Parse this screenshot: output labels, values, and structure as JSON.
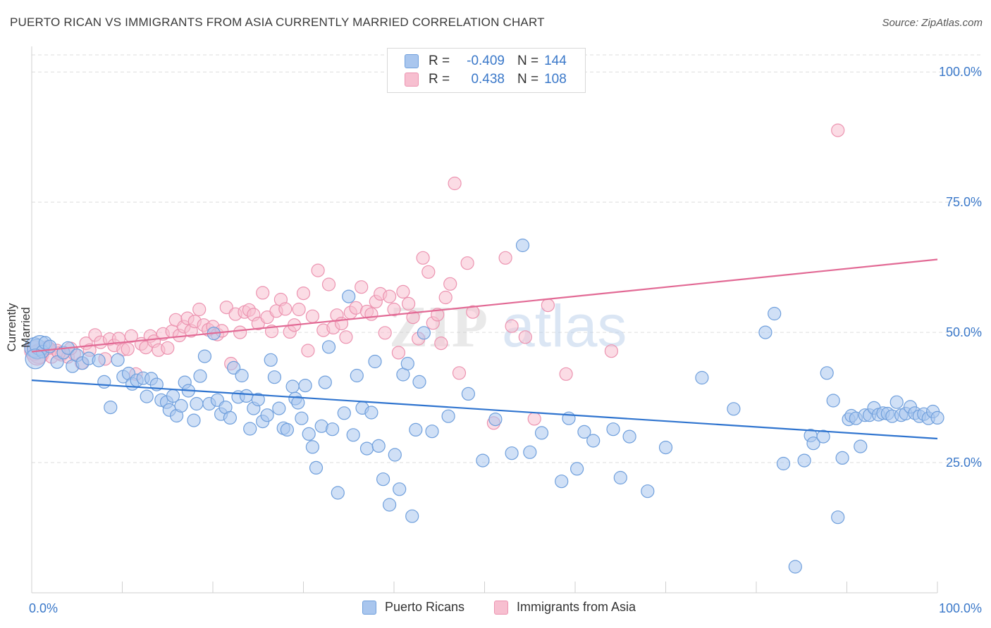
{
  "title": "PUERTO RICAN VS IMMIGRANTS FROM ASIA CURRENTLY MARRIED CORRELATION CHART",
  "source": "Source: ZipAtlas.com",
  "watermark": {
    "zip": "ZIP",
    "atlas": "atlas"
  },
  "legend": {
    "r_label": "R =",
    "n_label": "N =",
    "rows": [
      {
        "r": "-0.409",
        "n": "144"
      },
      {
        "r": "0.438",
        "n": "108"
      }
    ]
  },
  "colors": {
    "blue_fill": "#a9c6ee",
    "blue_stroke": "#6f9fdc",
    "blue_line": "#2f74cf",
    "pink_fill": "#f7bfd0",
    "pink_stroke": "#ec93b0",
    "pink_line": "#e26a95",
    "tick_text": "#3a78c9",
    "grid": "#dedede"
  },
  "chart_data": {
    "type": "scatter",
    "title": "PUERTO RICAN VS IMMIGRANTS FROM ASIA CURRENTLY MARRIED CORRELATION CHART",
    "xlabel": "",
    "ylabel": "Currently Married",
    "xlim": [
      0,
      100
    ],
    "ylim": [
      0,
      103
    ],
    "x_tick_labels": [
      "0.0%",
      "100.0%"
    ],
    "y_ticks": [
      25,
      50,
      75,
      100
    ],
    "y_tick_labels": [
      "25.0%",
      "50.0%",
      "75.0%",
      "100.0%"
    ],
    "grid": true,
    "legend_position": "top-center",
    "series": [
      {
        "name": "Puerto Ricans",
        "r": -0.409,
        "n": 144,
        "trend": {
          "x": [
            0,
            100
          ],
          "y": [
            40.8,
            29.6
          ]
        },
        "points": [
          [
            0.3,
            47.1
          ],
          [
            0.6,
            46.8
          ],
          [
            0.9,
            47.5
          ],
          [
            1.2,
            46.3
          ],
          [
            1.5,
            48.0
          ],
          [
            2.0,
            47.3
          ],
          [
            2.8,
            44.3
          ],
          [
            3.5,
            46.1
          ],
          [
            4.0,
            47.0
          ],
          [
            4.5,
            43.5
          ],
          [
            5.0,
            45.6
          ],
          [
            5.6,
            44.1
          ],
          [
            6.3,
            45.0
          ],
          [
            7.4,
            44.6
          ],
          [
            8.0,
            40.5
          ],
          [
            8.7,
            35.6
          ],
          [
            9.5,
            44.7
          ],
          [
            10.1,
            41.5
          ],
          [
            10.7,
            42.1
          ],
          [
            11.1,
            40.1
          ],
          [
            11.6,
            40.8
          ],
          [
            12.3,
            41.2
          ],
          [
            12.7,
            37.7
          ],
          [
            13.2,
            41.1
          ],
          [
            13.8,
            40.0
          ],
          [
            14.3,
            37.0
          ],
          [
            14.9,
            36.6
          ],
          [
            15.2,
            35.1
          ],
          [
            15.6,
            37.8
          ],
          [
            16.0,
            34.0
          ],
          [
            16.5,
            35.9
          ],
          [
            16.9,
            40.4
          ],
          [
            17.3,
            38.8
          ],
          [
            17.9,
            33.1
          ],
          [
            18.2,
            36.3
          ],
          [
            18.6,
            41.6
          ],
          [
            19.1,
            45.4
          ],
          [
            19.6,
            36.3
          ],
          [
            20.1,
            49.8
          ],
          [
            20.5,
            37.0
          ],
          [
            20.9,
            34.3
          ],
          [
            21.4,
            35.6
          ],
          [
            21.9,
            33.6
          ],
          [
            22.3,
            43.2
          ],
          [
            22.8,
            37.6
          ],
          [
            23.2,
            41.7
          ],
          [
            23.7,
            37.8
          ],
          [
            24.1,
            31.5
          ],
          [
            24.5,
            35.4
          ],
          [
            25.0,
            37.1
          ],
          [
            25.5,
            32.9
          ],
          [
            26.0,
            34.1
          ],
          [
            26.4,
            44.7
          ],
          [
            26.8,
            41.4
          ],
          [
            27.3,
            35.4
          ],
          [
            27.8,
            31.6
          ],
          [
            28.2,
            31.3
          ],
          [
            28.8,
            39.6
          ],
          [
            29.1,
            37.3
          ],
          [
            29.4,
            36.5
          ],
          [
            29.8,
            33.5
          ],
          [
            30.2,
            39.8
          ],
          [
            30.6,
            30.5
          ],
          [
            31.0,
            28.0
          ],
          [
            31.4,
            24.0
          ],
          [
            32.0,
            32.0
          ],
          [
            32.4,
            40.4
          ],
          [
            32.8,
            47.2
          ],
          [
            33.2,
            31.4
          ],
          [
            33.8,
            19.2
          ],
          [
            34.5,
            34.5
          ],
          [
            35.0,
            56.9
          ],
          [
            35.5,
            30.3
          ],
          [
            35.9,
            41.7
          ],
          [
            36.5,
            35.5
          ],
          [
            37.0,
            27.7
          ],
          [
            37.5,
            34.6
          ],
          [
            37.9,
            44.4
          ],
          [
            38.3,
            28.2
          ],
          [
            38.8,
            21.8
          ],
          [
            39.5,
            16.9
          ],
          [
            40.1,
            26.5
          ],
          [
            40.6,
            19.9
          ],
          [
            41.0,
            41.9
          ],
          [
            41.5,
            44.0
          ],
          [
            42.0,
            14.7
          ],
          [
            42.4,
            31.3
          ],
          [
            42.8,
            40.5
          ],
          [
            43.3,
            49.9
          ],
          [
            44.2,
            31.0
          ],
          [
            46.0,
            33.9
          ],
          [
            48.2,
            38.2
          ],
          [
            49.8,
            25.4
          ],
          [
            51.2,
            33.3
          ],
          [
            53.0,
            26.8
          ],
          [
            54.2,
            66.7
          ],
          [
            55.0,
            27.0
          ],
          [
            56.3,
            30.7
          ],
          [
            58.5,
            21.4
          ],
          [
            59.3,
            33.5
          ],
          [
            60.2,
            23.8
          ],
          [
            61.0,
            30.9
          ],
          [
            62.0,
            29.2
          ],
          [
            64.2,
            31.4
          ],
          [
            65.0,
            22.1
          ],
          [
            66.0,
            30.0
          ],
          [
            68.0,
            19.5
          ],
          [
            70.0,
            27.9
          ],
          [
            74.0,
            41.3
          ],
          [
            77.5,
            35.3
          ],
          [
            81.0,
            50.0
          ],
          [
            82.0,
            53.6
          ],
          [
            83.0,
            24.8
          ],
          [
            84.3,
            5.0
          ],
          [
            85.3,
            25.4
          ],
          [
            86.0,
            30.2
          ],
          [
            86.3,
            28.7
          ],
          [
            87.4,
            30.0
          ],
          [
            87.8,
            42.2
          ],
          [
            88.5,
            36.9
          ],
          [
            89.0,
            14.5
          ],
          [
            89.5,
            25.9
          ],
          [
            90.2,
            33.3
          ],
          [
            90.5,
            34.0
          ],
          [
            91.0,
            33.5
          ],
          [
            91.5,
            28.1
          ],
          [
            92.0,
            34.1
          ],
          [
            92.5,
            34.1
          ],
          [
            93.0,
            35.5
          ],
          [
            93.5,
            34.2
          ],
          [
            94.0,
            34.5
          ],
          [
            94.5,
            34.4
          ],
          [
            95.0,
            33.9
          ],
          [
            95.5,
            36.6
          ],
          [
            96.0,
            34.1
          ],
          [
            96.5,
            34.4
          ],
          [
            97.0,
            35.7
          ],
          [
            97.5,
            34.5
          ],
          [
            98.0,
            33.9
          ],
          [
            98.5,
            34.3
          ],
          [
            99.0,
            33.5
          ],
          [
            99.5,
            34.8
          ],
          [
            100.0,
            33.6
          ],
          [
            0.4,
            44.9
          ]
        ]
      },
      {
        "name": "Immigrants from Asia",
        "r": 0.438,
        "n": 108,
        "trend": {
          "x": [
            0,
            100
          ],
          "y": [
            46.3,
            64.0
          ]
        },
        "points": [
          [
            0.3,
            46.5
          ],
          [
            0.8,
            45.9
          ],
          [
            1.2,
            46.8
          ],
          [
            1.7,
            47.2
          ],
          [
            2.2,
            45.3
          ],
          [
            2.8,
            46.5
          ],
          [
            3.3,
            45.7
          ],
          [
            4.0,
            45.3
          ],
          [
            4.7,
            45.9
          ],
          [
            5.5,
            44.1
          ],
          [
            6.0,
            47.9
          ],
          [
            6.4,
            46.6
          ],
          [
            7.0,
            49.5
          ],
          [
            7.6,
            48.1
          ],
          [
            8.1,
            44.9
          ],
          [
            8.6,
            48.7
          ],
          [
            9.1,
            47.5
          ],
          [
            9.6,
            48.8
          ],
          [
            10.1,
            46.7
          ],
          [
            10.6,
            46.8
          ],
          [
            11.0,
            49.3
          ],
          [
            11.5,
            42.0
          ],
          [
            12.1,
            47.8
          ],
          [
            12.6,
            47.1
          ],
          [
            13.1,
            49.3
          ],
          [
            13.5,
            48.3
          ],
          [
            14.0,
            46.6
          ],
          [
            14.5,
            49.7
          ],
          [
            15.0,
            47.0
          ],
          [
            15.5,
            50.2
          ],
          [
            15.9,
            52.4
          ],
          [
            16.3,
            49.4
          ],
          [
            16.8,
            51.1
          ],
          [
            17.2,
            52.7
          ],
          [
            17.6,
            50.3
          ],
          [
            18.0,
            52.1
          ],
          [
            18.5,
            54.4
          ],
          [
            19.0,
            51.4
          ],
          [
            19.5,
            50.5
          ],
          [
            20.0,
            51.1
          ],
          [
            20.5,
            49.6
          ],
          [
            21.0,
            50.3
          ],
          [
            21.5,
            54.8
          ],
          [
            22.0,
            44.0
          ],
          [
            22.5,
            53.5
          ],
          [
            23.0,
            50.0
          ],
          [
            23.5,
            53.9
          ],
          [
            24.0,
            54.3
          ],
          [
            24.5,
            53.4
          ],
          [
            25.0,
            51.7
          ],
          [
            25.5,
            57.6
          ],
          [
            26.0,
            52.9
          ],
          [
            26.5,
            50.2
          ],
          [
            27.0,
            54.1
          ],
          [
            27.5,
            56.3
          ],
          [
            28.0,
            54.5
          ],
          [
            28.5,
            50.1
          ],
          [
            29.0,
            51.4
          ],
          [
            29.5,
            54.4
          ],
          [
            30.0,
            57.5
          ],
          [
            30.5,
            46.5
          ],
          [
            31.0,
            53.1
          ],
          [
            31.6,
            61.9
          ],
          [
            32.2,
            50.4
          ],
          [
            32.8,
            59.2
          ],
          [
            33.3,
            50.9
          ],
          [
            33.7,
            53.3
          ],
          [
            34.2,
            51.7
          ],
          [
            34.7,
            49.1
          ],
          [
            35.2,
            53.8
          ],
          [
            35.8,
            54.7
          ],
          [
            36.4,
            58.7
          ],
          [
            37.0,
            54.0
          ],
          [
            37.5,
            53.5
          ],
          [
            38.0,
            55.9
          ],
          [
            38.5,
            57.4
          ],
          [
            39.0,
            49.9
          ],
          [
            39.5,
            56.9
          ],
          [
            40.0,
            54.4
          ],
          [
            40.5,
            46.1
          ],
          [
            41.0,
            57.8
          ],
          [
            41.6,
            55.5
          ],
          [
            42.1,
            52.9
          ],
          [
            42.7,
            48.8
          ],
          [
            43.2,
            64.3
          ],
          [
            43.8,
            61.6
          ],
          [
            44.3,
            51.8
          ],
          [
            44.8,
            53.4
          ],
          [
            45.2,
            47.9
          ],
          [
            45.7,
            56.7
          ],
          [
            46.2,
            59.3
          ],
          [
            46.7,
            78.6
          ],
          [
            47.2,
            42.2
          ],
          [
            48.1,
            63.3
          ],
          [
            48.7,
            53.9
          ],
          [
            51.0,
            32.6
          ],
          [
            52.3,
            64.3
          ],
          [
            53.0,
            51.2
          ],
          [
            54.5,
            49.1
          ],
          [
            55.5,
            33.4
          ],
          [
            57.0,
            55.2
          ],
          [
            59.0,
            42.0
          ],
          [
            64.0,
            46.4
          ],
          [
            89.0,
            88.8
          ],
          [
            0.6,
            45.6
          ],
          [
            1.9,
            47.0
          ],
          [
            3.0,
            46.0
          ],
          [
            4.3,
            46.9
          ]
        ]
      }
    ]
  }
}
